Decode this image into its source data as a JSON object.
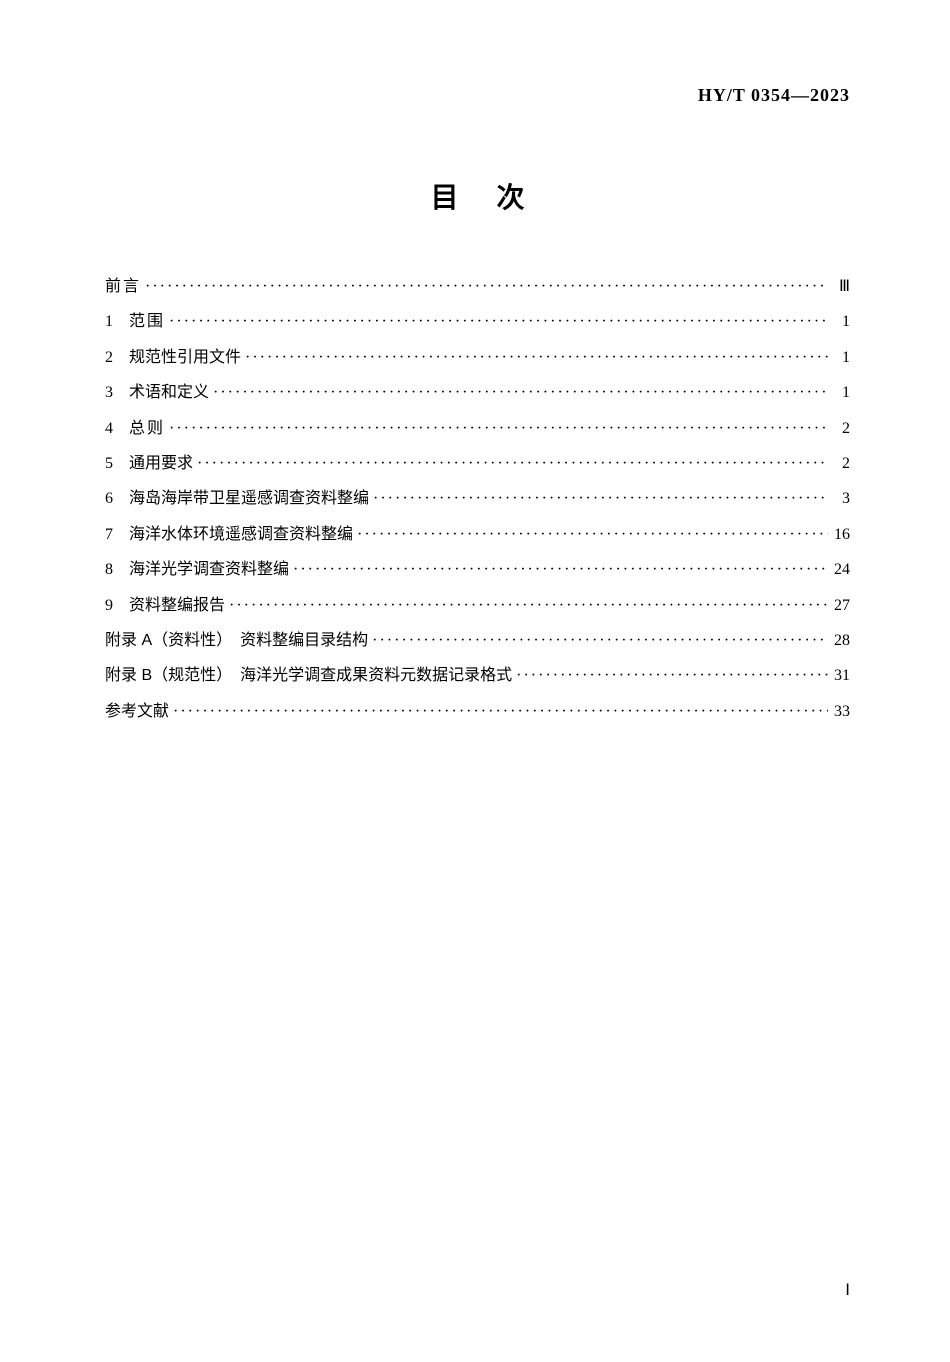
{
  "header": {
    "code": "HY/T 0354—2023"
  },
  "title": "目次",
  "toc": {
    "entries": [
      {
        "num": "",
        "label": "前言",
        "page": "Ⅲ",
        "labelClass": "spaced"
      },
      {
        "num": "1",
        "label": "范围",
        "page": "1",
        "labelClass": "spaced"
      },
      {
        "num": "2",
        "label": "规范性引用文件",
        "page": "1",
        "labelClass": ""
      },
      {
        "num": "3",
        "label": "术语和定义",
        "page": "1",
        "labelClass": ""
      },
      {
        "num": "4",
        "label": "总则",
        "page": "2",
        "labelClass": "spaced"
      },
      {
        "num": "5",
        "label": "通用要求",
        "page": "2",
        "labelClass": ""
      },
      {
        "num": "6",
        "label": "海岛海岸带卫星遥感调查资料整编",
        "page": "3",
        "labelClass": ""
      },
      {
        "num": "7",
        "label": "海洋水体环境遥感调查资料整编",
        "page": "16",
        "labelClass": ""
      },
      {
        "num": "8",
        "label": "海洋光学调查资料整编",
        "page": "24",
        "labelClass": ""
      },
      {
        "num": "9",
        "label": "资料整编报告",
        "page": "27",
        "labelClass": ""
      },
      {
        "num": "",
        "label": "附录 A（资料性）　资料整编目录结构",
        "page": "28",
        "labelClass": ""
      },
      {
        "num": "",
        "label": "附录 B（规范性）　海洋光学调查成果资料元数据记录格式",
        "page": "31",
        "labelClass": ""
      },
      {
        "num": "",
        "label": "参考文献",
        "page": "33",
        "labelClass": ""
      }
    ]
  },
  "pageNumber": "Ⅰ",
  "style": {
    "background": "#ffffff",
    "textColor": "#000000",
    "titleFontSize": 28,
    "bodyFontSize": 16
  }
}
